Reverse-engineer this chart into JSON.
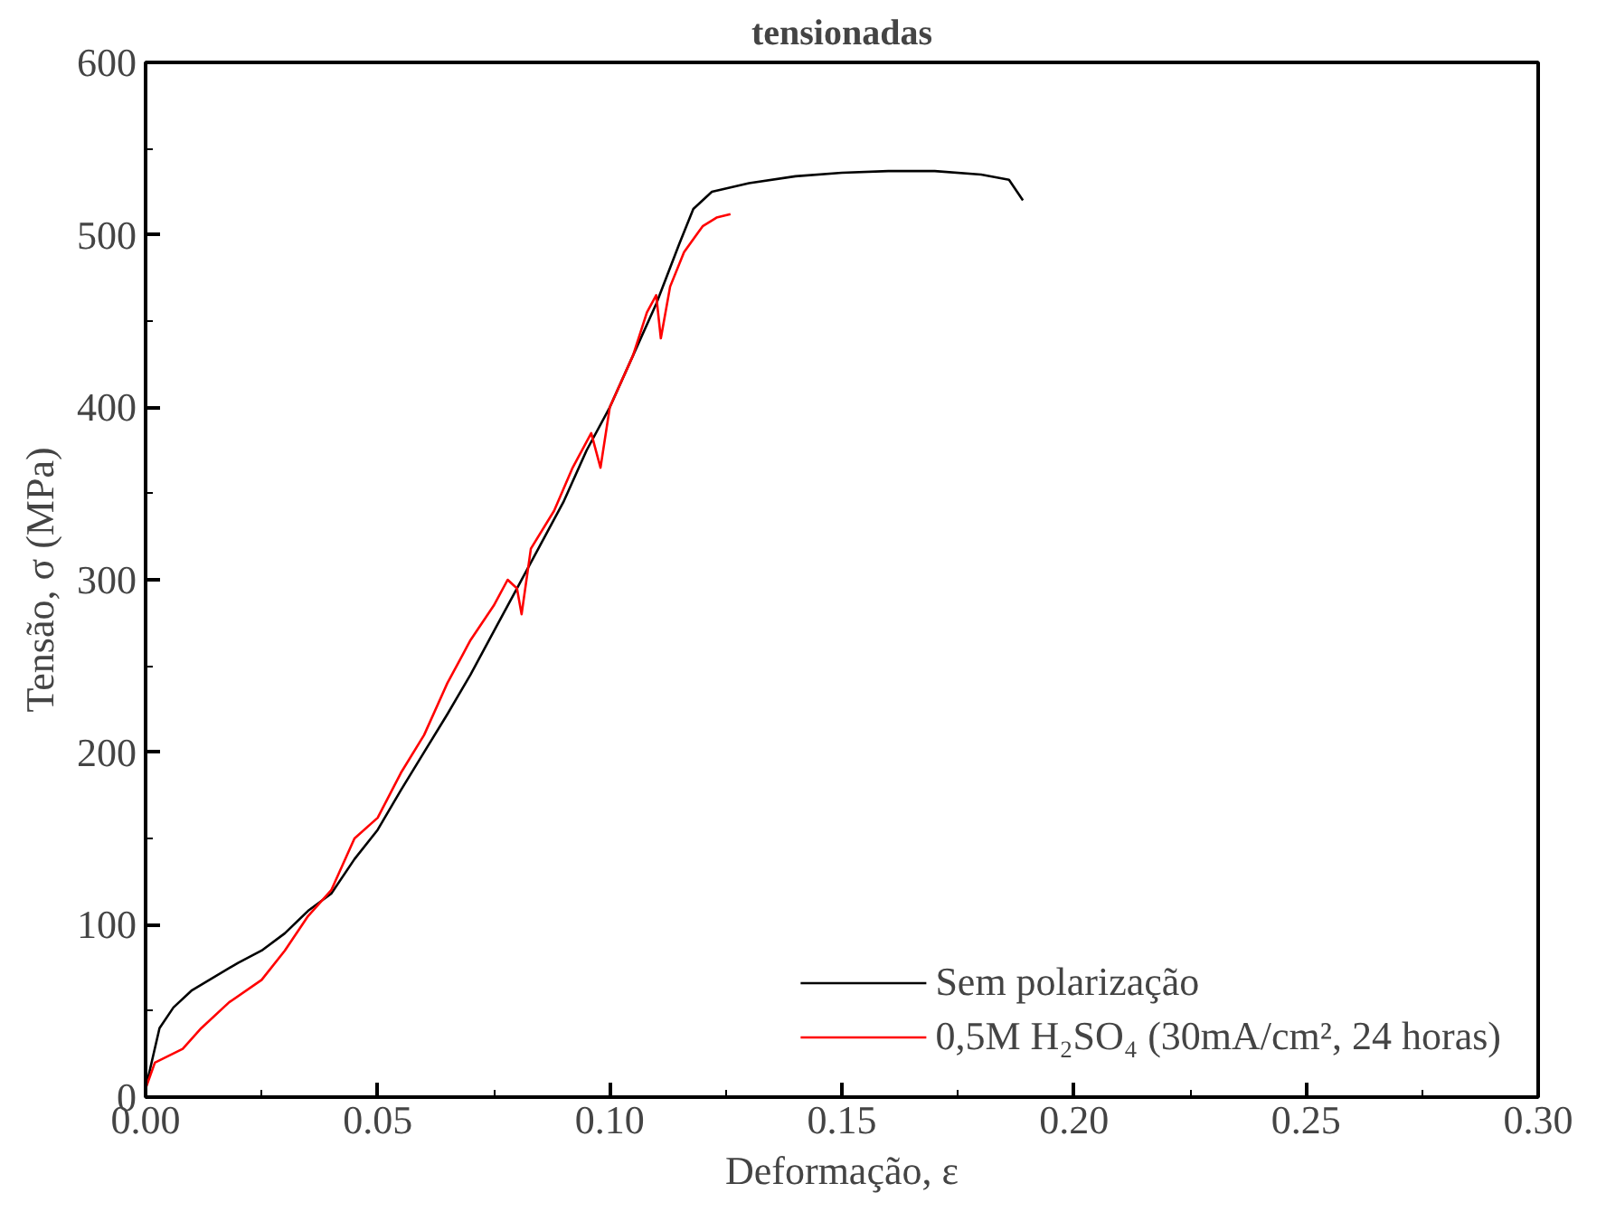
{
  "chart_data": {
    "type": "line",
    "title": "tensionadas",
    "xlabel": "Deformação, ε",
    "ylabel": "Tensão, σ (MPa)",
    "xlim": [
      0,
      0.3
    ],
    "ylim": [
      0,
      600
    ],
    "xticks": [
      {
        "value": 0,
        "label": "0.00"
      },
      {
        "value": 0.05,
        "label": "0.05"
      },
      {
        "value": 0.1,
        "label": "0.10"
      },
      {
        "value": 0.15,
        "label": "0.15"
      },
      {
        "value": 0.2,
        "label": "0.20"
      },
      {
        "value": 0.25,
        "label": "0.25"
      },
      {
        "value": 0.3,
        "label": "0.30"
      }
    ],
    "yticks": [
      0,
      100,
      200,
      300,
      400,
      500,
      600
    ],
    "grid": false,
    "legend": "bottom right",
    "marker": "none",
    "line_style": "solid",
    "series": [
      {
        "name": "Sem polarização",
        "color": "#000000",
        "x": [
          0,
          0.003,
          0.006,
          0.01,
          0.02,
          0.025,
          0.03,
          0.035,
          0.04,
          0.045,
          0.05,
          0.055,
          0.06,
          0.065,
          0.07,
          0.075,
          0.08,
          0.085,
          0.09,
          0.095,
          0.1,
          0.105,
          0.11,
          0.115,
          0.118,
          0.122,
          0.13,
          0.14,
          0.15,
          0.16,
          0.17,
          0.18,
          0.186,
          0.189
        ],
        "values": [
          5,
          40,
          52,
          62,
          78,
          85,
          95,
          108,
          118,
          138,
          155,
          178,
          200,
          222,
          245,
          270,
          295,
          320,
          345,
          375,
          400,
          430,
          460,
          495,
          515,
          525,
          530,
          534,
          536,
          537,
          537,
          535,
          532,
          520
        ]
      },
      {
        "name": "0,5M H₂SO₄ (30mA/cm², 24 horas)",
        "color": "#ff0000",
        "x": [
          0,
          0.002,
          0.008,
          0.012,
          0.018,
          0.025,
          0.03,
          0.035,
          0.04,
          0.045,
          0.05,
          0.055,
          0.06,
          0.065,
          0.07,
          0.075,
          0.078,
          0.08,
          0.081,
          0.083,
          0.088,
          0.092,
          0.096,
          0.098,
          0.1,
          0.105,
          0.108,
          0.11,
          0.111,
          0.113,
          0.116,
          0.12,
          0.123,
          0.126
        ],
        "values": [
          5,
          20,
          28,
          40,
          55,
          68,
          85,
          105,
          120,
          150,
          162,
          188,
          210,
          240,
          265,
          285,
          300,
          295,
          280,
          318,
          340,
          365,
          385,
          365,
          400,
          430,
          455,
          465,
          440,
          470,
          490,
          505,
          510,
          512
        ]
      }
    ]
  }
}
